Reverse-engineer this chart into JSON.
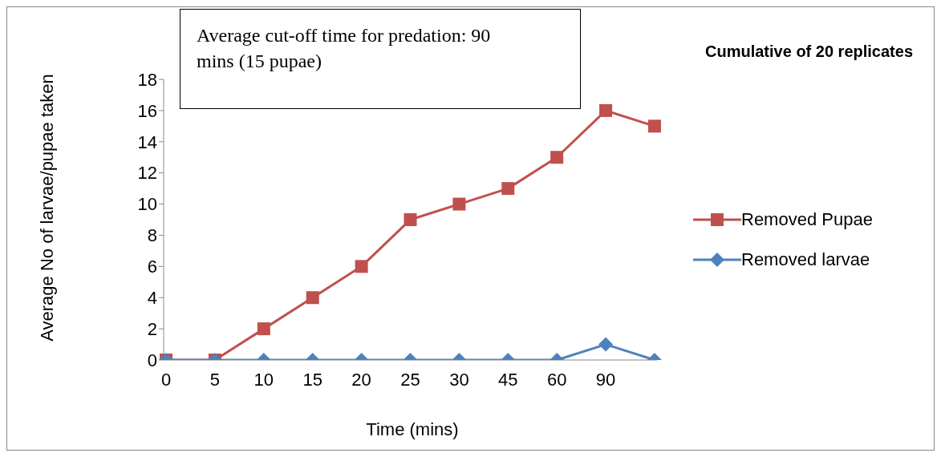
{
  "chart_data": {
    "type": "line",
    "xlabel": "Time (mins)",
    "ylabel": "Average  No of larvae/pupae taken",
    "annotations": [
      "Average cut-off time for predation: 90 mins (15 pupae)",
      "Cumulative of 20 replicates"
    ],
    "categories": [
      "0",
      "5",
      "10",
      "15",
      "20",
      "25",
      "30",
      "45",
      "60",
      "90",
      null
    ],
    "series": [
      {
        "name": "Removed Pupae",
        "color": "#c0504d",
        "marker": "square",
        "values": [
          0,
          0,
          2,
          4,
          6,
          9,
          10,
          11,
          13,
          16,
          15
        ]
      },
      {
        "name": "Removed larvae",
        "color": "#4f81bd",
        "marker": "diamond",
        "values": [
          0,
          0,
          0,
          0,
          0,
          0,
          0,
          0,
          0,
          1,
          0
        ]
      }
    ],
    "ylim": [
      0,
      18
    ],
    "yticks": [
      0,
      2,
      4,
      6,
      8,
      10,
      12,
      14,
      16,
      18
    ],
    "grid": false,
    "legend": "right"
  }
}
